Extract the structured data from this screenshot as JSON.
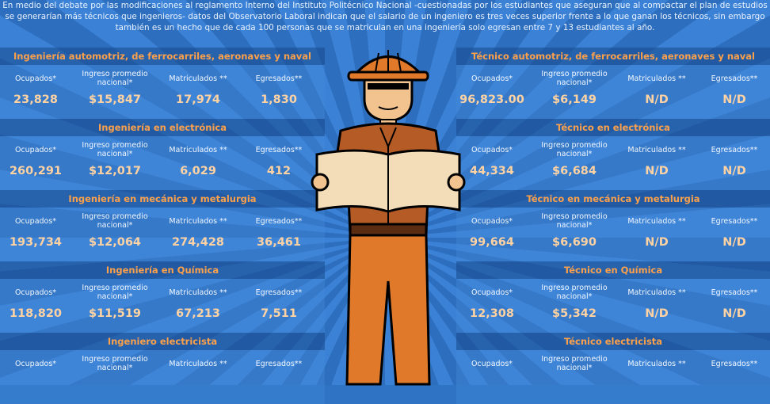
{
  "intro_text": "En medio del debate por las modificaciones al reglamento Interno del Instituto Politécnico Nacional -cuestionadas por los estudiantes que aseguran que al compactar el plan de estudios se generarían más técnicos que ingenieros- datos del Observatorio Laboral indican que el salario de un ingeniero es tres veces superior frente a lo que ganan los técnicos, sin embargo también es un hecho que de cada 100 personas que se matriculan en una ingeniería solo egresan entre 7 y 13 estudiantes al año.",
  "labels": {
    "ocupados": "Ocupados*",
    "ingreso": "Ingreso promedio nacional*",
    "matriculados": "Matriculados **",
    "egresados": "Egresados**"
  },
  "left": [
    {
      "title": "Ingeniería automotriz, de ferrocarriles, aeronaves y naval",
      "ocupados": "23,828",
      "ingreso": "$15,847",
      "matriculados": "17,974",
      "egresados": "1,830"
    },
    {
      "title": "Ingeniería en electrónica",
      "ocupados": "260,291",
      "ingreso": "$12,017",
      "matriculados": "6,029",
      "egresados": "412"
    },
    {
      "title": "Ingeniería en mecánica y metalurgia",
      "ocupados": "193,734",
      "ingreso": "$12,064",
      "matriculados": "274,428",
      "egresados": "36,461"
    },
    {
      "title": "Ingeniería en Química",
      "ocupados": "118,820",
      "ingreso": "$11,519",
      "matriculados": "67,213",
      "egresados": "7,511"
    },
    {
      "title": "Ingeniero electricista",
      "ocupados": "",
      "ingreso": "",
      "matriculados": "",
      "egresados": ""
    }
  ],
  "right": [
    {
      "title": "Técnico automotriz, de ferrocarriles, aeronaves y naval",
      "ocupados": "96,823.00",
      "ingreso": "$6,149",
      "matriculados": "N/D",
      "egresados": "N/D"
    },
    {
      "title": "Técnico en electrónica",
      "ocupados": "44,334",
      "ingreso": "$6,684",
      "matriculados": "N/D",
      "egresados": "N/D"
    },
    {
      "title": "Técnico en mecánica y metalurgia",
      "ocupados": "99,664",
      "ingreso": "$6,690",
      "matriculados": "N/D",
      "egresados": "N/D"
    },
    {
      "title": "Técnico en Química",
      "ocupados": "12,308",
      "ingreso": "$5,342",
      "matriculados": "N/D",
      "egresados": "N/D"
    },
    {
      "title": "Técnico electricista",
      "ocupados": "",
      "ingreso": "",
      "matriculados": "",
      "egresados": ""
    }
  ]
}
